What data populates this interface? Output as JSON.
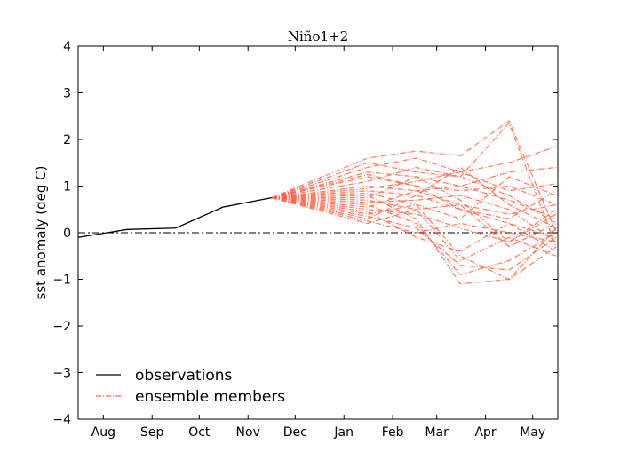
{
  "chart_data": {
    "type": "line",
    "title": "Niño1+2",
    "xlabel": "",
    "ylabel": "sst anomaly (deg C)",
    "ylim": [
      -4,
      4
    ],
    "yticks": [
      "4",
      "3",
      "2",
      "1",
      "0",
      "−1",
      "−2",
      "−3",
      "−4"
    ],
    "xlim": [
      "Jul 16",
      "May 17"
    ],
    "xticks": [
      "Aug",
      "Sep",
      "Oct",
      "Nov",
      "Dec",
      "Jan",
      "Feb",
      "Mar",
      "Apr",
      "May"
    ],
    "reference_line": {
      "y": 0,
      "style": "dash-dot",
      "color": "#000000"
    },
    "legend": {
      "placement": "lower-left",
      "entries": [
        "observations",
        "ensemble members"
      ]
    },
    "series": [
      {
        "name": "observations",
        "color": "#000000",
        "style": "solid",
        "x": [
          "Jul 16",
          "Aug 16",
          "Sep 16",
          "Oct 16",
          "Nov 16"
        ],
        "y": [
          -0.1,
          0.07,
          0.1,
          0.55,
          0.75
        ]
      },
      {
        "name": "ensemble members",
        "color": "#ff6347",
        "style": "dash-dot",
        "x": [
          "Nov 16",
          "Jan 16",
          "Feb 16",
          "Mar 16",
          "Apr 16",
          "May 16"
        ],
        "members": [
          [
            0.75,
            1.6,
            1.75,
            1.65,
            2.4,
            0.0
          ],
          [
            0.75,
            1.5,
            1.3,
            1.2,
            2.35,
            -0.3
          ],
          [
            0.75,
            1.4,
            1.6,
            1.3,
            1.5,
            1.85
          ],
          [
            0.75,
            1.3,
            1.2,
            1.0,
            1.3,
            1.4
          ],
          [
            0.75,
            1.2,
            1.0,
            0.9,
            1.0,
            0.6
          ],
          [
            0.75,
            1.1,
            1.4,
            1.2,
            0.8,
            0.2
          ],
          [
            0.75,
            1.0,
            0.9,
            0.6,
            0.4,
            0.6
          ],
          [
            0.75,
            0.95,
            1.1,
            1.3,
            0.9,
            1.05
          ],
          [
            0.75,
            0.9,
            0.8,
            0.5,
            0.2,
            -0.1
          ],
          [
            0.75,
            0.85,
            0.6,
            -0.5,
            -1.0,
            0.1
          ],
          [
            0.75,
            0.8,
            0.3,
            -1.1,
            -1.0,
            -0.3
          ],
          [
            0.75,
            0.75,
            1.2,
            0.7,
            -0.2,
            0.4
          ],
          [
            0.75,
            0.7,
            0.5,
            -0.6,
            -0.1,
            -0.5
          ],
          [
            0.75,
            0.65,
            0.7,
            0.8,
            0.5,
            -0.2
          ],
          [
            0.75,
            0.6,
            0.2,
            -0.9,
            -0.6,
            0.0
          ],
          [
            0.75,
            0.55,
            0.9,
            1.0,
            0.7,
            0.3
          ],
          [
            0.75,
            0.5,
            0.4,
            0.1,
            -0.2,
            0.5
          ],
          [
            0.75,
            0.45,
            -0.1,
            -0.4,
            0.2,
            -0.4
          ],
          [
            0.75,
            0.4,
            0.6,
            0.3,
            1.2,
            0.8
          ],
          [
            0.75,
            0.35,
            0.1,
            -0.7,
            -0.8,
            -0.1
          ],
          [
            0.75,
            0.3,
            0.8,
            1.4,
            0.6,
            0.1
          ],
          [
            0.75,
            0.25,
            0.0,
            0.2,
            0.0,
            -0.2
          ],
          [
            0.75,
            1.25,
            1.0,
            0.5,
            0.3,
            0.9
          ],
          [
            0.75,
            0.2,
            0.5,
            0.6,
            -0.3,
            0.2
          ]
        ]
      }
    ]
  }
}
